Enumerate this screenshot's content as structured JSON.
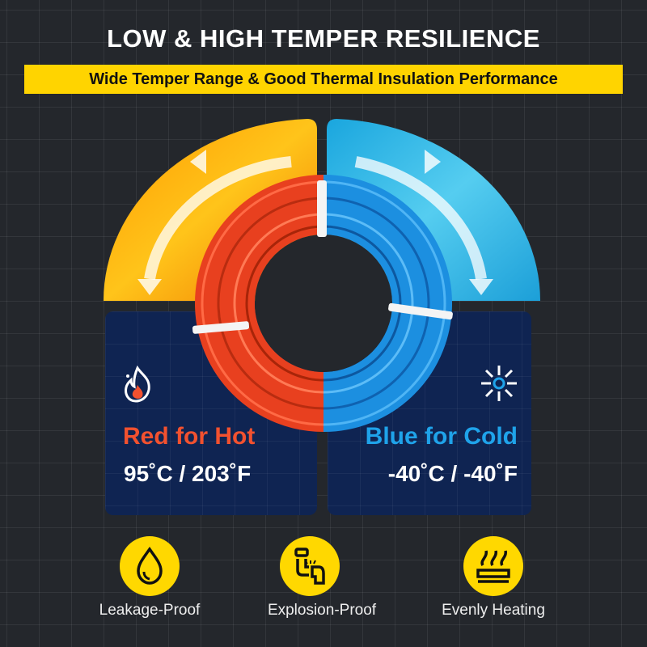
{
  "title": "LOW & HIGH TEMPER RESILIENCE",
  "banner": "Wide Temper Range & Good Thermal Insulation Performance",
  "hot": {
    "label": "Red for Hot",
    "temperature": "95˚C / 203˚F",
    "icon": "flame-icon",
    "color": "#f2512f"
  },
  "cold": {
    "label": "Blue for Cold",
    "temperature": "-40˚C / -40˚F",
    "icon": "snowflake-icon",
    "color": "#1fa3ea"
  },
  "features": [
    {
      "label": "Leakage-Proof",
      "icon": "water-drop-icon"
    },
    {
      "label": "Explosion-Proof",
      "icon": "pipe-burst-icon"
    },
    {
      "label": "Evenly Heating",
      "icon": "heating-icon"
    }
  ],
  "colors": {
    "accent": "#ffd400",
    "background": "#24272c",
    "panel": "#0f2452"
  }
}
